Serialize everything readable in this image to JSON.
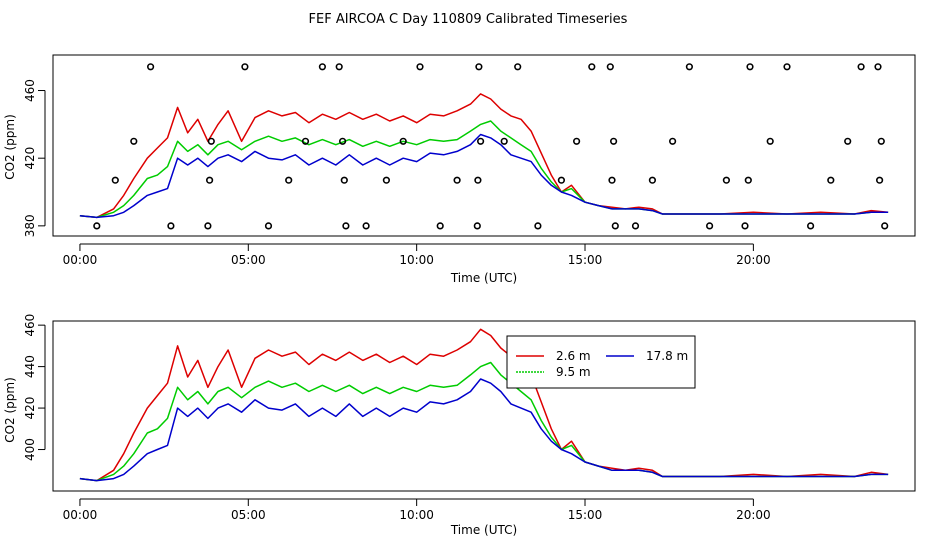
{
  "title": "FEF AIRCOA C  Day 110809  Calibrated Timeseries",
  "colors": {
    "s1": "#dd0000",
    "s2": "#00cc00",
    "s3": "#0000cc",
    "axis": "#000000",
    "markers": "#000000"
  },
  "chart_data": [
    {
      "type": "line",
      "xlabel": "Time (UTC)",
      "ylabel": "CO2 (ppm)",
      "xlim": [
        -0.8,
        24.8
      ],
      "ylim": [
        374,
        481
      ],
      "x_ticks": [
        0,
        5,
        10,
        15,
        20
      ],
      "x_tick_labels": [
        "00:00",
        "05:00",
        "10:00",
        "15:00",
        "20:00"
      ],
      "y_ticks": [
        380,
        420,
        460
      ],
      "y_tick_labels": [
        "380",
        "420",
        "460"
      ],
      "series": [
        {
          "name": "2.6 m",
          "color_key": "s1",
          "x": [
            0,
            0.5,
            1,
            1.3,
            1.6,
            2,
            2.3,
            2.6,
            2.9,
            3.2,
            3.5,
            3.8,
            4.1,
            4.4,
            4.8,
            5.2,
            5.6,
            6,
            6.4,
            6.8,
            7.2,
            7.6,
            8,
            8.4,
            8.8,
            9.2,
            9.6,
            10,
            10.4,
            10.8,
            11.2,
            11.6,
            11.9,
            12.2,
            12.5,
            12.8,
            13.1,
            13.4,
            13.7,
            14,
            14.3,
            14.6,
            15,
            15.4,
            15.8,
            16.2,
            16.6,
            17,
            17.3,
            18,
            19,
            20,
            21,
            22,
            23,
            23.5,
            24
          ],
          "values": [
            386,
            385,
            390,
            398,
            408,
            420,
            426,
            432,
            450,
            435,
            443,
            430,
            440,
            448,
            430,
            444,
            448,
            445,
            447,
            441,
            446,
            443,
            447,
            443,
            446,
            442,
            445,
            441,
            446,
            445,
            448,
            452,
            458,
            455,
            449,
            445,
            443,
            436,
            423,
            410,
            400,
            404,
            394,
            392,
            391,
            390,
            391,
            390,
            387,
            387,
            387,
            388,
            387,
            388,
            387,
            389,
            388
          ]
        },
        {
          "name": "9.5 m",
          "color_key": "s2",
          "x": [
            0,
            0.5,
            1,
            1.3,
            1.6,
            2,
            2.3,
            2.6,
            2.9,
            3.2,
            3.5,
            3.8,
            4.1,
            4.4,
            4.8,
            5.2,
            5.6,
            6,
            6.4,
            6.8,
            7.2,
            7.6,
            8,
            8.4,
            8.8,
            9.2,
            9.6,
            10,
            10.4,
            10.8,
            11.2,
            11.6,
            11.9,
            12.2,
            12.5,
            12.8,
            13.1,
            13.4,
            13.7,
            14,
            14.3,
            14.6,
            15,
            15.4,
            15.8,
            16.2,
            16.6,
            17,
            17.3,
            18,
            19,
            20,
            21,
            22,
            23,
            23.5,
            24
          ],
          "values": [
            386,
            385,
            388,
            392,
            398,
            408,
            410,
            415,
            430,
            424,
            428,
            422,
            428,
            430,
            425,
            430,
            433,
            430,
            432,
            428,
            431,
            428,
            431,
            427,
            430,
            427,
            430,
            428,
            431,
            430,
            431,
            436,
            440,
            442,
            436,
            432,
            428,
            424,
            414,
            406,
            400,
            402,
            394,
            392,
            390,
            390,
            390,
            389,
            387,
            387,
            387,
            387,
            387,
            387,
            387,
            388,
            388
          ]
        },
        {
          "name": "17.8 m",
          "color_key": "s3",
          "x": [
            0,
            0.5,
            1,
            1.3,
            1.6,
            2,
            2.3,
            2.6,
            2.9,
            3.2,
            3.5,
            3.8,
            4.1,
            4.4,
            4.8,
            5.2,
            5.6,
            6,
            6.4,
            6.8,
            7.2,
            7.6,
            8,
            8.4,
            8.8,
            9.2,
            9.6,
            10,
            10.4,
            10.8,
            11.2,
            11.6,
            11.9,
            12.2,
            12.5,
            12.8,
            13.1,
            13.4,
            13.7,
            14,
            14.3,
            14.6,
            15,
            15.4,
            15.8,
            16.2,
            16.6,
            17,
            17.3,
            18,
            19,
            20,
            21,
            22,
            23,
            23.5,
            24
          ],
          "values": [
            386,
            385,
            386,
            388,
            392,
            398,
            400,
            402,
            420,
            416,
            420,
            415,
            420,
            422,
            418,
            424,
            420,
            419,
            422,
            416,
            420,
            416,
            422,
            416,
            420,
            416,
            420,
            418,
            423,
            422,
            424,
            428,
            434,
            432,
            428,
            422,
            420,
            418,
            410,
            404,
            400,
            398,
            394,
            392,
            390,
            390,
            390,
            389,
            387,
            387,
            387,
            387,
            387,
            387,
            387,
            388,
            388
          ]
        }
      ],
      "markers": {
        "x": [
          0.5,
          1.05,
          1.6,
          2.1,
          2.7,
          3.8,
          3.85,
          3.9,
          4.9,
          5.6,
          6.2,
          6.7,
          7.2,
          7.7,
          7.8,
          7.85,
          7.9,
          8.5,
          9.1,
          9.6,
          10.1,
          10.7,
          11.2,
          11.8,
          11.82,
          11.85,
          11.9,
          12.6,
          13.0,
          13.6,
          14.3,
          14.75,
          15.2,
          15.75,
          15.8,
          15.85,
          15.9,
          16.5,
          17.0,
          17.6,
          18.1,
          18.7,
          19.2,
          19.75,
          19.85,
          19.9,
          20.5,
          21.0,
          21.7,
          22.3,
          22.8,
          23.2,
          23.7,
          23.75,
          23.8,
          23.9
        ],
        "values": [
          380,
          407,
          430,
          474,
          380,
          380,
          407,
          430,
          474,
          380,
          407,
          430,
          474,
          474,
          430,
          407,
          380,
          380,
          407,
          430,
          474,
          380,
          407,
          380,
          407,
          474,
          430,
          430,
          474,
          380,
          407,
          430,
          474,
          474,
          407,
          430,
          380,
          380,
          407,
          430,
          474,
          380,
          407,
          380,
          407,
          474,
          430,
          474,
          380,
          407,
          430,
          474,
          474,
          407,
          430,
          380
        ]
      }
    },
    {
      "type": "line",
      "xlabel": "Time (UTC)",
      "ylabel": "CO2 (ppm)",
      "xlim": [
        -0.8,
        24.8
      ],
      "ylim": [
        380,
        462
      ],
      "x_ticks": [
        0,
        5,
        10,
        15,
        20
      ],
      "x_tick_labels": [
        "00:00",
        "05:00",
        "10:00",
        "15:00",
        "20:00"
      ],
      "y_ticks": [
        400,
        420,
        440,
        460
      ],
      "y_tick_labels": [
        "400",
        "420",
        "440",
        "460"
      ],
      "legend": {
        "position": "top-right",
        "entries": [
          "2.6 m",
          "17.8 m",
          "9.5 m"
        ]
      },
      "series_ref": 0
    }
  ]
}
